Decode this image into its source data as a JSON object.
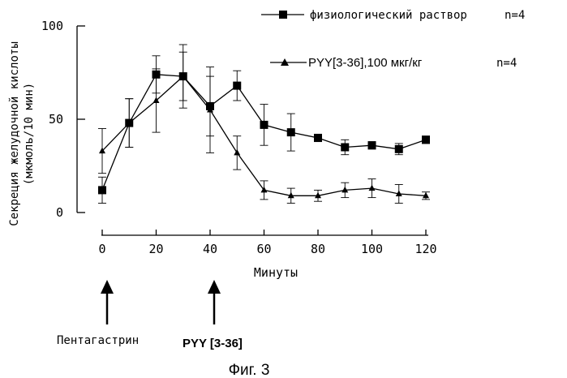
{
  "chart_data": {
    "type": "line",
    "x": [
      0,
      10,
      20,
      30,
      40,
      50,
      60,
      70,
      80,
      90,
      100,
      110,
      120
    ],
    "xlim": [
      0,
      120
    ],
    "ylim": [
      0,
      100
    ],
    "x_ticks": [
      "0",
      "20",
      "40",
      "60",
      "80",
      "100",
      "120"
    ],
    "y_ticks": [
      "0",
      "50",
      "100"
    ],
    "xlabel": "Минуты",
    "ylabel_line1": "Секреция желудочной кислоты",
    "ylabel_line2": "(мкмоль/10 мин)",
    "series": [
      {
        "name": "физиологический раствор",
        "n_label": "n=4",
        "marker": "square",
        "values": [
          12,
          48,
          74,
          73,
          57,
          68,
          47,
          43,
          40,
          35,
          36,
          34,
          39
        ],
        "errors": [
          7,
          13,
          10,
          13,
          16,
          8,
          11,
          10,
          2,
          4,
          2,
          3,
          2
        ]
      },
      {
        "name": "PYY[3-36],100 мкг/кг",
        "n_label": "n=4",
        "marker": "triangle",
        "values": [
          33,
          48,
          60,
          73,
          55,
          32,
          12,
          9,
          9,
          12,
          13,
          10,
          9
        ],
        "errors": [
          12,
          13,
          17,
          17,
          23,
          9,
          5,
          4,
          3,
          4,
          5,
          5,
          2
        ]
      }
    ],
    "legend": "top-right",
    "annotations": [
      {
        "label": "Пентагастрин",
        "at_x": 0
      },
      {
        "label": "PYY [3-36]",
        "at_x": 40
      }
    ],
    "caption": "Фиг. 3"
  }
}
